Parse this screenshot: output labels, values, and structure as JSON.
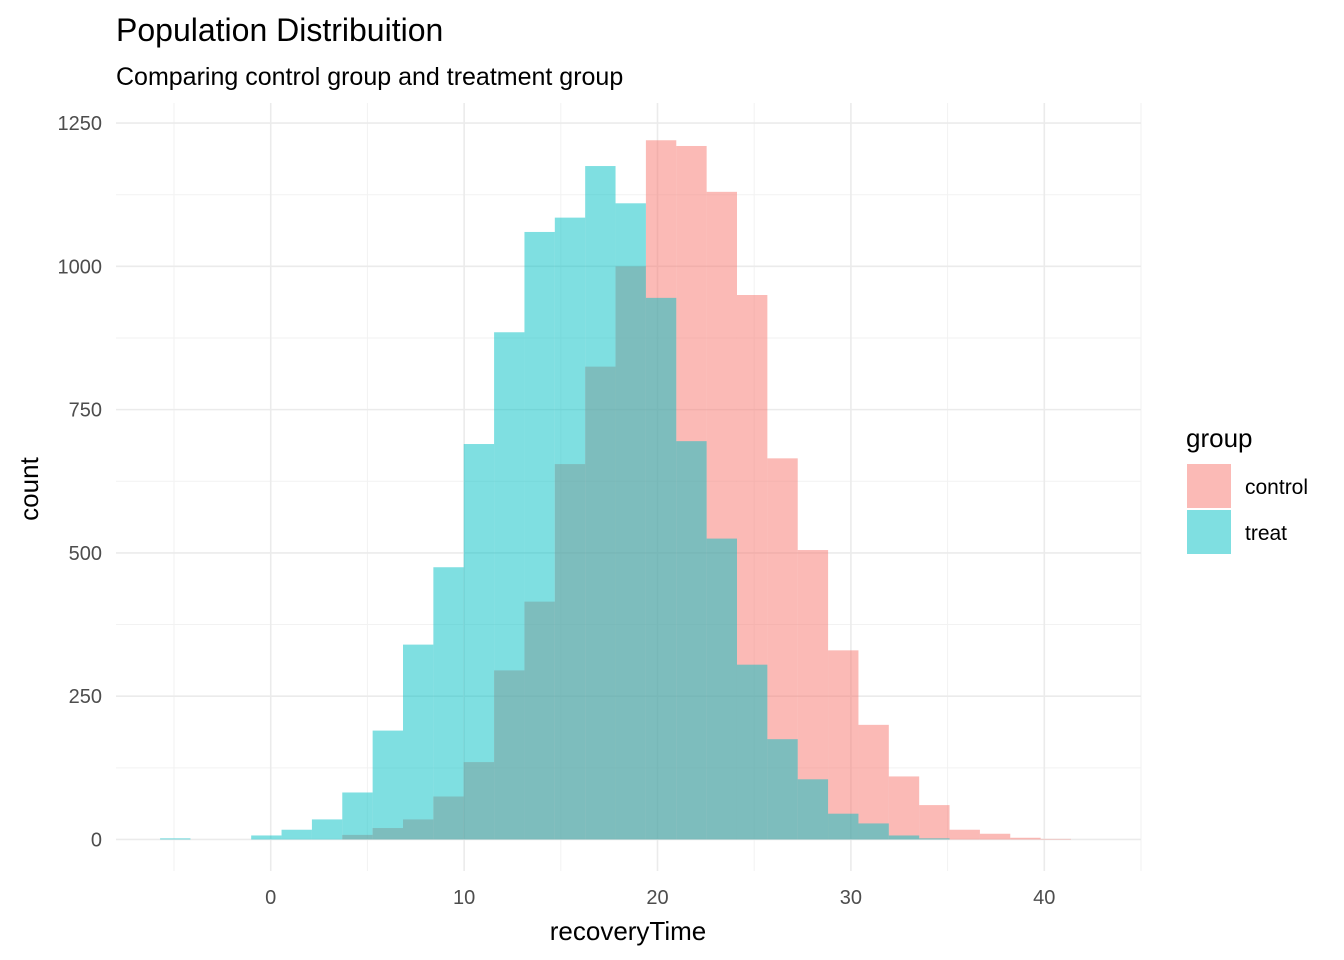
{
  "chart_data": {
    "type": "bar",
    "title": "Population Distribuition",
    "subtitle": "Comparing control group and treatment group",
    "xlabel": "recoveryTime",
    "ylabel": "count",
    "xlim": [
      -8,
      45
    ],
    "ylim": [
      -55,
      1285
    ],
    "x_ticks": [
      0,
      10,
      20,
      30,
      40
    ],
    "y_ticks": [
      0,
      250,
      500,
      750,
      1000,
      1250
    ],
    "grid": true,
    "legend_position": "right",
    "legend_title": "group",
    "bin_edges": [
      -5.72,
      -4.15,
      -2.58,
      -1.01,
      0.56,
      2.13,
      3.7,
      5.27,
      6.84,
      8.41,
      9.98,
      11.55,
      13.12,
      14.69,
      16.26,
      17.83,
      19.4,
      20.97,
      22.54,
      24.11,
      25.68,
      27.25,
      28.82,
      30.39,
      31.96,
      33.53,
      35.1,
      36.67,
      38.24,
      39.81,
      41.38,
      42.95
    ],
    "series": [
      {
        "name": "control",
        "color": "#F8766D",
        "opacity": 0.5,
        "values": [
          0,
          0,
          0,
          0,
          0,
          0,
          8,
          20,
          35,
          75,
          135,
          295,
          415,
          655,
          825,
          1000,
          1220,
          1210,
          1130,
          950,
          665,
          505,
          330,
          200,
          110,
          60,
          17,
          10,
          3,
          1,
          0
        ]
      },
      {
        "name": "treat",
        "color": "#00BFC4",
        "opacity": 0.5,
        "values": [
          2,
          0,
          0,
          7,
          17,
          35,
          82,
          190,
          340,
          475,
          690,
          885,
          1060,
          1085,
          1175,
          1110,
          945,
          695,
          525,
          305,
          175,
          105,
          45,
          28,
          7,
          2,
          0,
          0,
          0,
          0,
          0
        ]
      }
    ]
  }
}
